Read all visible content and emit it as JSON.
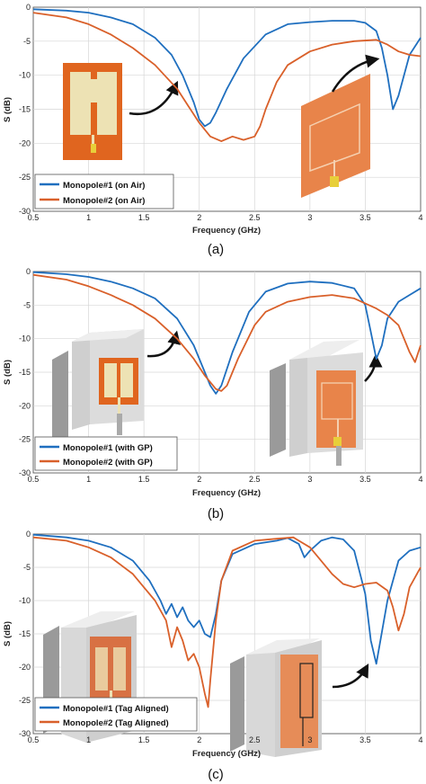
{
  "colors": {
    "series1": "#1f6fbf",
    "series2": "#d9602a",
    "grid": "#d6d6d6"
  },
  "chart_data": [
    {
      "type": "line",
      "caption": "(a)",
      "xlabel": "Frequency (GHz)",
      "ylabel": "S (dB)",
      "xlim": [
        0.5,
        4
      ],
      "ylim": [
        -30,
        0
      ],
      "xticks": [
        "0.5",
        "1",
        "1.5",
        "2",
        "2.5",
        "3",
        "3.5",
        "4"
      ],
      "yticks": [
        "0",
        "-5",
        "-10",
        "-15",
        "-20",
        "-25",
        "-30"
      ],
      "grid": true,
      "legend_position": "bottom-left",
      "series": [
        {
          "name": "Monopole#1 (on Air)",
          "color": "#1f6fbf",
          "x": [
            0.5,
            0.8,
            1.0,
            1.2,
            1.4,
            1.6,
            1.75,
            1.85,
            1.95,
            2.0,
            2.05,
            2.1,
            2.15,
            2.25,
            2.4,
            2.6,
            2.8,
            3.0,
            3.2,
            3.4,
            3.5,
            3.6,
            3.65,
            3.7,
            3.75,
            3.8,
            3.9,
            4.0
          ],
          "y": [
            -0.3,
            -0.5,
            -0.8,
            -1.5,
            -2.5,
            -4.5,
            -7.0,
            -10.0,
            -14.0,
            -16.5,
            -17.5,
            -17.0,
            -15.5,
            -12.0,
            -7.5,
            -4.0,
            -2.5,
            -2.2,
            -2.0,
            -2.0,
            -2.3,
            -3.5,
            -6.0,
            -10.0,
            -15.0,
            -13.0,
            -7.0,
            -4.5
          ]
        },
        {
          "name": "Monopole#2 (on Air)",
          "color": "#d9602a",
          "x": [
            0.5,
            0.8,
            1.0,
            1.2,
            1.4,
            1.6,
            1.8,
            1.9,
            2.0,
            2.1,
            2.2,
            2.3,
            2.4,
            2.5,
            2.55,
            2.6,
            2.7,
            2.8,
            3.0,
            3.2,
            3.4,
            3.6,
            3.7,
            3.8,
            3.9,
            4.0
          ],
          "y": [
            -0.8,
            -1.5,
            -2.5,
            -4.0,
            -6.0,
            -8.5,
            -12.0,
            -14.5,
            -17.0,
            -19.0,
            -19.7,
            -19.0,
            -19.5,
            -19.0,
            -17.5,
            -15.0,
            -11.0,
            -8.5,
            -6.5,
            -5.5,
            -5.0,
            -4.8,
            -5.5,
            -6.5,
            -7.0,
            -7.2
          ]
        }
      ]
    },
    {
      "type": "line",
      "caption": "(b)",
      "xlabel": "Frequency (GHz)",
      "ylabel": "S (dB)",
      "xlim": [
        0.5,
        4
      ],
      "ylim": [
        -30,
        0
      ],
      "xticks": [
        "0.5",
        "1",
        "1.5",
        "2",
        "2.5",
        "3",
        "3.5",
        "4"
      ],
      "yticks": [
        "0",
        "-5",
        "-10",
        "-15",
        "-20",
        "-25",
        "-30"
      ],
      "grid": true,
      "legend_position": "bottom-left",
      "series": [
        {
          "name": "Monopole#1 (with GP)",
          "color": "#1f6fbf",
          "x": [
            0.5,
            0.8,
            1.0,
            1.2,
            1.4,
            1.6,
            1.8,
            1.95,
            2.05,
            2.1,
            2.15,
            2.2,
            2.3,
            2.45,
            2.6,
            2.8,
            3.0,
            3.2,
            3.4,
            3.5,
            3.55,
            3.6,
            3.65,
            3.7,
            3.8,
            3.9,
            4.0
          ],
          "y": [
            -0.1,
            -0.4,
            -0.8,
            -1.5,
            -2.5,
            -4.0,
            -7.0,
            -11.0,
            -15.0,
            -17.0,
            -18.2,
            -17.0,
            -12.0,
            -6.0,
            -3.0,
            -1.8,
            -1.5,
            -1.7,
            -2.5,
            -5.0,
            -9.0,
            -13.0,
            -11.0,
            -7.0,
            -4.5,
            -3.5,
            -2.5
          ]
        },
        {
          "name": "Monopole#2 (with GP)",
          "color": "#d9602a",
          "x": [
            0.5,
            0.8,
            1.0,
            1.2,
            1.4,
            1.6,
            1.8,
            1.95,
            2.05,
            2.15,
            2.2,
            2.25,
            2.35,
            2.5,
            2.6,
            2.8,
            3.0,
            3.2,
            3.4,
            3.6,
            3.7,
            3.8,
            3.9,
            3.95,
            4.0
          ],
          "y": [
            -0.5,
            -1.2,
            -2.2,
            -3.5,
            -5.0,
            -7.0,
            -10.0,
            -13.0,
            -15.5,
            -17.5,
            -17.8,
            -17.0,
            -13.0,
            -8.0,
            -6.0,
            -4.5,
            -3.8,
            -3.5,
            -4.0,
            -5.5,
            -6.5,
            -8.0,
            -12.0,
            -13.5,
            -11.0
          ]
        }
      ]
    },
    {
      "type": "line",
      "caption": "(c)",
      "xlabel": "Frequency (GHz)",
      "ylabel": "S (dB)",
      "xlim": [
        0.5,
        4
      ],
      "ylim": [
        -30,
        0
      ],
      "xticks": [
        "0.5",
        "1",
        "1.5",
        "2",
        "2.5",
        "3",
        "3.5",
        "4"
      ],
      "yticks": [
        "0",
        "-5",
        "-10",
        "-15",
        "-20",
        "-25",
        "-30"
      ],
      "grid": true,
      "legend_position": "bottom-left",
      "series": [
        {
          "name": "Monopole#1 (Tag Aligned)",
          "color": "#1f6fbf",
          "x": [
            0.5,
            0.8,
            1.0,
            1.2,
            1.4,
            1.55,
            1.65,
            1.7,
            1.75,
            1.8,
            1.85,
            1.9,
            1.95,
            2.0,
            2.05,
            2.1,
            2.15,
            2.2,
            2.3,
            2.5,
            2.7,
            2.8,
            2.9,
            2.95,
            3.0,
            3.1,
            3.2,
            3.3,
            3.4,
            3.5,
            3.55,
            3.6,
            3.7,
            3.8,
            3.9,
            4.0
          ],
          "y": [
            -0.1,
            -0.5,
            -1.0,
            -2.0,
            -4.0,
            -7.0,
            -10.0,
            -12.0,
            -10.5,
            -12.5,
            -11.0,
            -13.0,
            -14.0,
            -13.0,
            -15.0,
            -15.5,
            -12.0,
            -7.0,
            -3.0,
            -1.5,
            -1.0,
            -0.6,
            -1.5,
            -3.5,
            -2.5,
            -1.0,
            -0.5,
            -0.8,
            -2.5,
            -9.0,
            -16.0,
            -19.5,
            -10.0,
            -4.0,
            -2.5,
            -2.0
          ]
        },
        {
          "name": "Monopole#2 (Tag Aligned)",
          "color": "#d9602a",
          "x": [
            0.5,
            0.8,
            1.0,
            1.2,
            1.4,
            1.5,
            1.6,
            1.7,
            1.75,
            1.8,
            1.85,
            1.9,
            1.95,
            2.0,
            2.05,
            2.08,
            2.1,
            2.15,
            2.2,
            2.3,
            2.5,
            2.7,
            2.85,
            2.9,
            3.0,
            3.1,
            3.2,
            3.3,
            3.4,
            3.5,
            3.6,
            3.7,
            3.75,
            3.8,
            3.85,
            3.9,
            4.0
          ],
          "y": [
            -0.5,
            -1.0,
            -2.0,
            -3.5,
            -6.0,
            -8.0,
            -10.0,
            -13.0,
            -17.0,
            -14.0,
            -16.0,
            -19.0,
            -18.0,
            -20.0,
            -24.0,
            -26.0,
            -22.0,
            -13.0,
            -7.0,
            -2.5,
            -1.0,
            -0.7,
            -0.5,
            -1.0,
            -2.0,
            -4.0,
            -6.0,
            -7.5,
            -8.0,
            -7.5,
            -7.3,
            -8.5,
            -11.0,
            -14.5,
            -12.0,
            -8.0,
            -5.0
          ]
        }
      ]
    }
  ]
}
